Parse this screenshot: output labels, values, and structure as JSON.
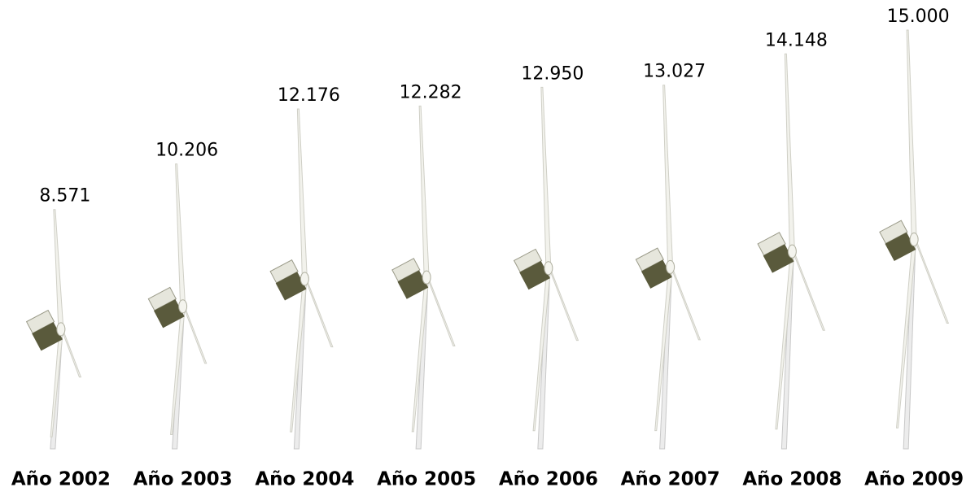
{
  "chart_data": {
    "type": "pictogram",
    "categories": [
      "Año 2002",
      "Año 2003",
      "Año 2004",
      "Año 2005",
      "Año 2006",
      "Año 2007",
      "Año 2008",
      "Año 2009"
    ],
    "values": [
      8571,
      10206,
      12176,
      12282,
      12950,
      13027,
      14148,
      15000
    ],
    "value_labels": [
      "8.571",
      "10.206",
      "12.176",
      "12.282",
      "12.950",
      "13.027",
      "14.148",
      "15.000"
    ],
    "color": "#5a5a3c"
  }
}
